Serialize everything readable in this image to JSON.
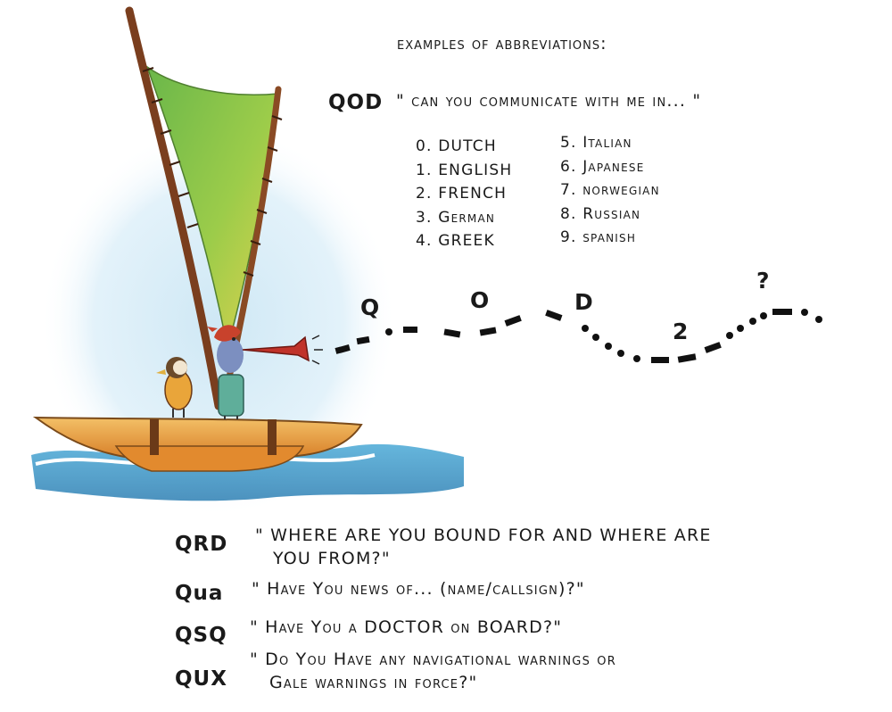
{
  "heading": "examples of abbreviations:",
  "qod": {
    "code": "QOD",
    "phrase": "\" can you communicate with me in... \"",
    "languages_left": [
      "0. DUTCH",
      "1. ENGLISH",
      "2. FRENCH",
      "3. German",
      "4. GREEK"
    ],
    "languages_right": [
      "5. Italian",
      "6. Japanese",
      "7. norwegian",
      "8. Russian",
      "9. spanish"
    ]
  },
  "signal": {
    "letters": [
      "Q",
      "O",
      "D",
      "2",
      "?"
    ]
  },
  "codes": [
    {
      "code": "QRD",
      "line1": "\" WHERE ARE YOU BOUND FOR AND WHERE ARE",
      "line2": "YOU FROM?\""
    },
    {
      "code": "Qua",
      "line1": "\" Have You news of... (name/callsign)?\"",
      "line2": ""
    },
    {
      "code": "QSQ",
      "line1": "\" Have You a DOCTOR on BOARD?\"",
      "line2": ""
    },
    {
      "code": "QUX",
      "line1": "\" Do You Have any navigational warnings or",
      "line2": "Gale warnings in force?\""
    }
  ],
  "colors": {
    "sail_green": "#7fbf4a",
    "sail_yellow": "#d9d24a",
    "mast_brown": "#8a4a24",
    "hull_orange": "#e89a3c",
    "water_blue": "#3f9fcf",
    "sky_blue": "#bfe0f0",
    "horn_red": "#c0332a"
  }
}
